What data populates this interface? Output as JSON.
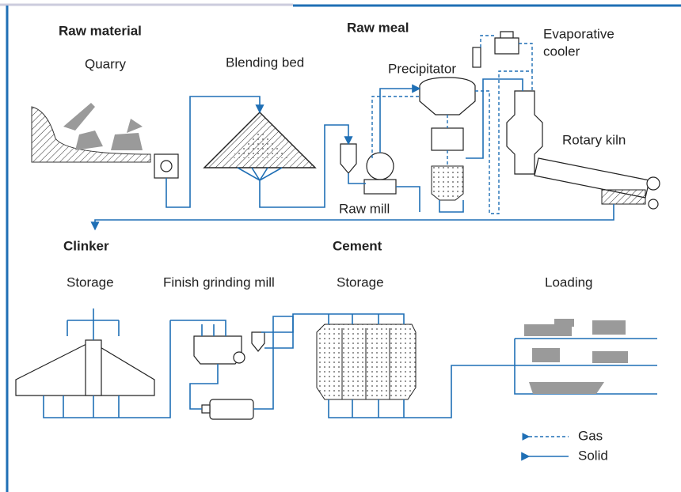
{
  "headings": [
    "Raw material",
    "Raw meal",
    "Clinker",
    "Cement"
  ],
  "labels": [
    "Quarry",
    "Blending bed",
    "Precipitator",
    "Rotary kiln",
    "Raw mill",
    "Storage",
    "Finish grinding mill",
    "Storage",
    "Loading"
  ],
  "evaporative_cooler": [
    "Evaporative",
    "cooler"
  ],
  "legend": [
    "Gas",
    "Solid"
  ]
}
